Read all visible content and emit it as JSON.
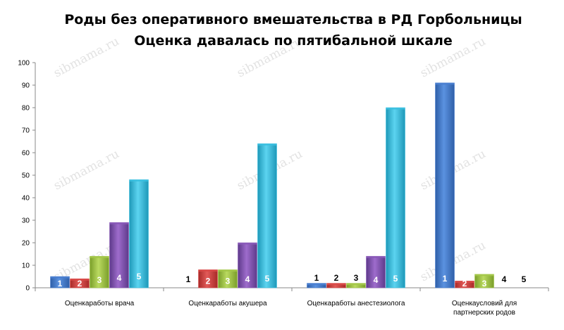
{
  "chart_data": {
    "type": "bar",
    "title_lines": [
      "Роды без оперативного вмешательства в РД Горбольницы",
      "Оценка давалась по пятибальной шкале"
    ],
    "categories": [
      [
        "Оценкаработы врача"
      ],
      [
        "Оценкаработы акушера"
      ],
      [
        "Оценкаработы анестезиолога"
      ],
      [
        "Оценкаусловий для",
        "партнерских родов"
      ]
    ],
    "series": [
      {
        "name": "1",
        "values": [
          5,
          0,
          2,
          91
        ]
      },
      {
        "name": "2",
        "values": [
          4,
          8,
          2,
          3
        ]
      },
      {
        "name": "3",
        "values": [
          14,
          8,
          2,
          6
        ]
      },
      {
        "name": "4",
        "values": [
          29,
          20,
          14,
          0
        ]
      },
      {
        "name": "5",
        "values": [
          48,
          64,
          80,
          0
        ]
      }
    ],
    "ylim": [
      0,
      100
    ],
    "ytick_step": 10,
    "xlabel": "",
    "ylabel": "",
    "grid": false,
    "legend": "none",
    "data_labels": "series name",
    "watermark": "sibmama.ru",
    "colors": {
      "1": "#4a7fd0",
      "2": "#d94a48",
      "3": "#a4c84a",
      "4": "#8a5ab8",
      "5": "#3cc0e0"
    }
  }
}
